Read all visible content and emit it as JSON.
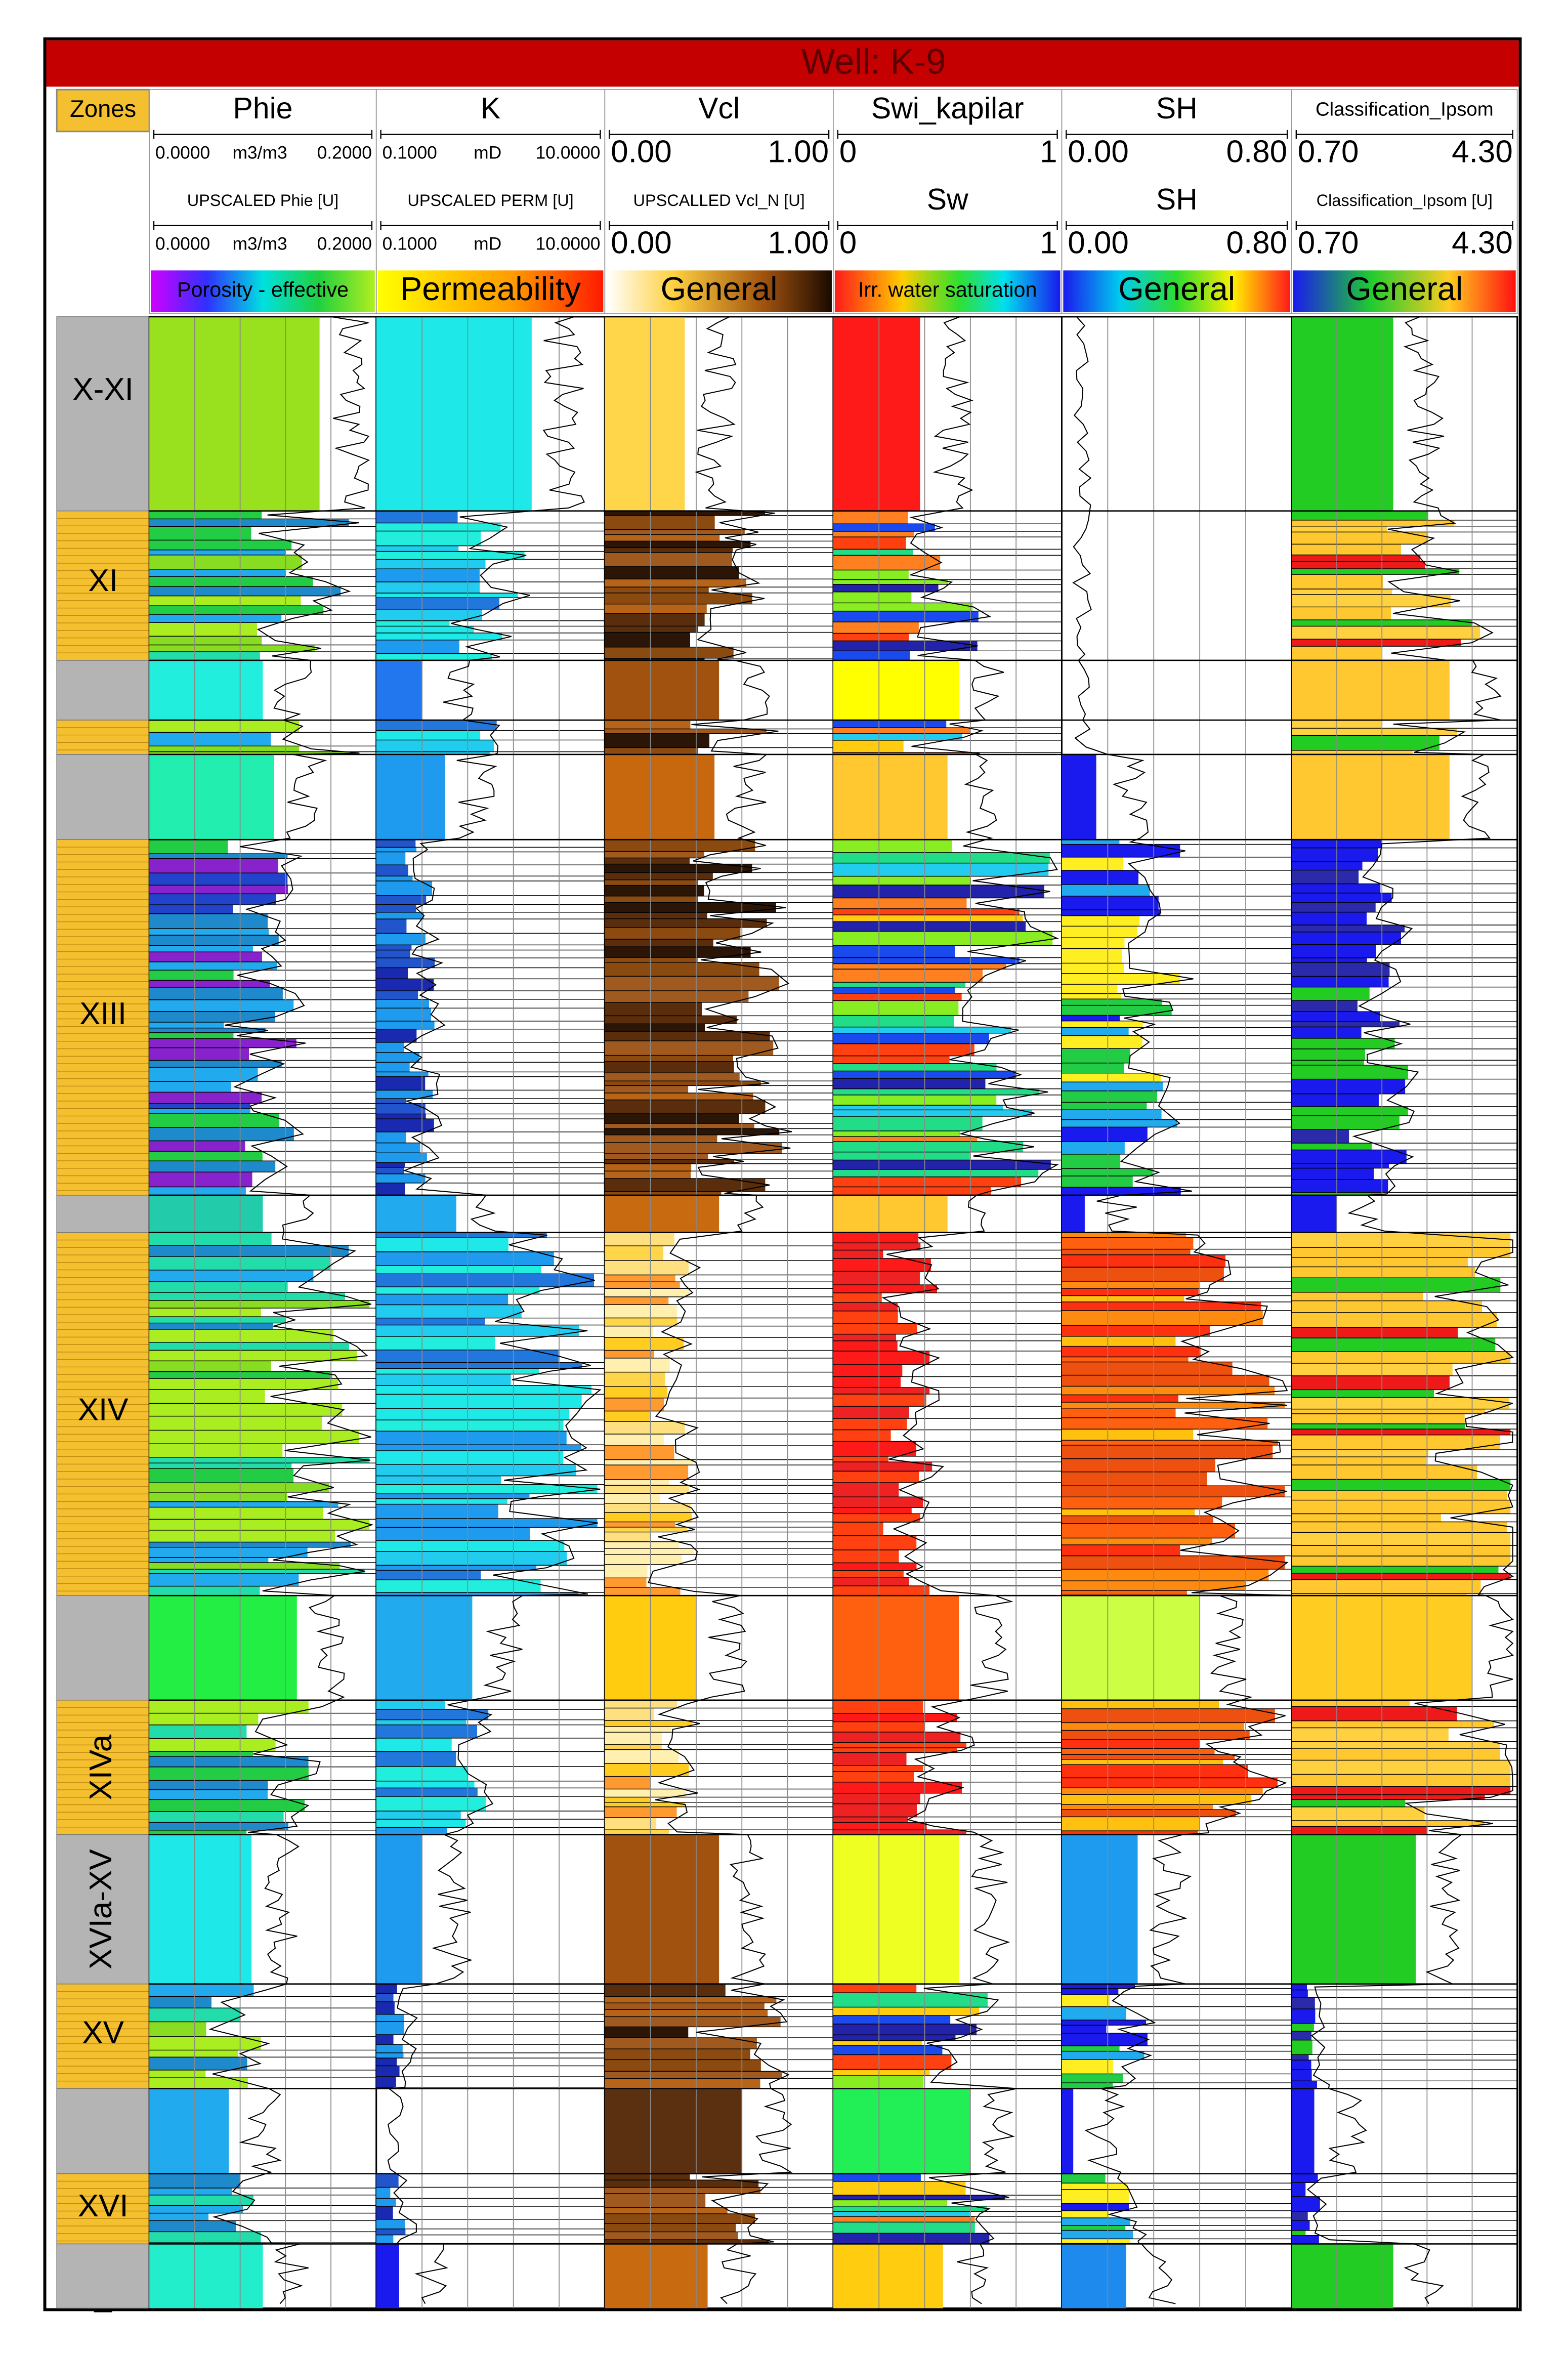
{
  "header": {
    "title": "Well: K-9",
    "zones_label": "Zones"
  },
  "tracks": [
    {
      "name": "Phie",
      "scale": {
        "min": "0.0000",
        "unit": "m3/m3",
        "max": "0.2000"
      },
      "upscaled_name": "UPSCALED Phie [U]",
      "upscaled_scale": {
        "min": "0.0000",
        "unit": "m3/m3",
        "max": "0.2000"
      },
      "colorbar": "Porosity - effective"
    },
    {
      "name": "K",
      "scale": {
        "min": "0.1000",
        "unit": "mD",
        "max": "10.0000"
      },
      "upscaled_name": "UPSCALED PERM [U]",
      "upscaled_scale": {
        "min": "0.1000",
        "unit": "mD",
        "max": "10.0000"
      },
      "colorbar": "Permeability"
    },
    {
      "name": "Vcl",
      "scale": {
        "min": "0.00",
        "max": "1.00"
      },
      "upscaled_name": "UPSCALLED Vcl_N [U]",
      "upscaled_scale": {
        "min": "0.00",
        "max": "1.00"
      },
      "colorbar": "General"
    },
    {
      "name": "Swi_kapilar",
      "scale": {
        "min": "0",
        "max": "1"
      },
      "upscaled_name": "Sw",
      "upscaled_scale": {
        "min": "0",
        "max": "1"
      },
      "colorbar": "Irr. water saturation"
    },
    {
      "name": "SH",
      "scale": {
        "min": "0.00",
        "max": "0.80"
      },
      "upscaled_name": "SH",
      "upscaled_scale": {
        "min": "0.00",
        "max": "0.80"
      },
      "colorbar": "General"
    },
    {
      "name": "Classification_Ipsom",
      "scale": {
        "min": "0.70",
        "max": "4.30"
      },
      "upscaled_name": "Classification_Ipsom [U]",
      "upscaled_scale": {
        "min": "0.70",
        "max": "4.30"
      },
      "colorbar": "General"
    }
  ],
  "zones": [
    {
      "label": "X-XI"
    },
    {
      "label": "XI"
    },
    {
      "label": "XIII"
    },
    {
      "label": "XIV"
    },
    {
      "label": "XIVa"
    },
    {
      "label": "XVIa-XV"
    },
    {
      "label": "XV"
    },
    {
      "label": "XVI"
    },
    {
      "label": "_"
    }
  ]
}
